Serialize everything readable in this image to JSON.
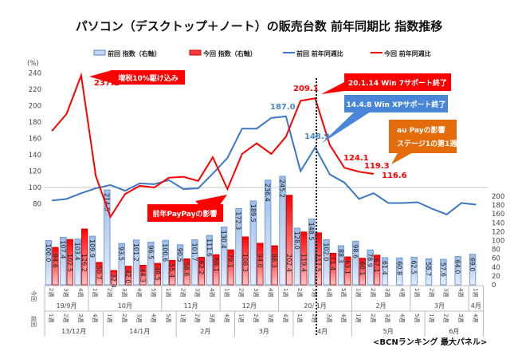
{
  "chart_data": {
    "type": "bar",
    "title": "パソコン（デスクトップ＋ノート）の販売台数 前年同期比 指数推移",
    "left_axis": {
      "label": "(%)",
      "ylim": [
        70,
        245
      ],
      "ticks": [
        80,
        100,
        120,
        140,
        160,
        180,
        200,
        220,
        240
      ]
    },
    "right_axis": {
      "ylim": [
        0,
        200
      ],
      "ticks": [
        0,
        20,
        40,
        60,
        80,
        100,
        120,
        140,
        160,
        180,
        200
      ]
    },
    "reference_line": 100,
    "legend": [
      {
        "name": "前回 指数（右軸）",
        "kind": "bar",
        "color": "#4f81bd"
      },
      {
        "name": "今回 指数（右軸）",
        "kind": "bar",
        "color": "#ff0000"
      },
      {
        "name": "前回 前年同週比",
        "kind": "line",
        "color": "#3c78c4"
      },
      {
        "name": "今回 前年同週比",
        "kind": "line",
        "color": "#ff0000"
      }
    ],
    "legend_placement": "top",
    "series": [
      {
        "name": "前回 指数（右軸）",
        "axis": "right",
        "type": "bar",
        "values": [
          100.0,
          107.4,
          103.4,
          109.9,
          214.5,
          93.5,
          101.2,
          96.5,
          100.6,
          90.5,
          101.7,
          111.6,
          130.4,
          172.3,
          189.5,
          236.4,
          245.2,
          128.0,
          148.5,
          102.0,
          88.3,
          98.6,
          78.9,
          61.4,
          60.8,
          62.5,
          58.7,
          57.6,
          64.0,
          69.0
        ]
      },
      {
        "name": "今回 指数（右軸）",
        "axis": "right",
        "type": "bar",
        "values": [
          84.6,
          102.5,
          126.2,
          50.7,
          32.4,
          42.0,
          44.3,
          48.5,
          55.4,
          58.6,
          62.2,
          68.1,
          79.1,
          108.3,
          94.0,
          88.3,
          202.4,
          119.4,
          117.5,
          71.4,
          63.1,
          60.1,
          67.1
        ]
      },
      {
        "name": "前回 前年同週比",
        "axis": "left",
        "type": "line",
        "values": [
          84,
          86,
          93,
          99,
          103,
          96,
          105,
          104,
          109,
          98,
          99,
          117,
          136,
          172,
          172,
          185,
          187.0,
          120,
          148.9,
          116,
          106,
          86,
          93,
          81,
          81,
          82,
          74,
          67,
          81,
          79
        ]
      },
      {
        "name": "今回 前年同週比",
        "axis": "left",
        "type": "line",
        "values": [
          169,
          190,
          237.1,
          114,
          64,
          92,
          102,
          100,
          112,
          113,
          108,
          137,
          98,
          141,
          154,
          141,
          162,
          206,
          209.1,
          152,
          124.1,
          119.3,
          116.6
        ]
      }
    ],
    "x_current": {
      "row_label": "今回",
      "weeks": [
        "2週",
        "3週",
        "4週",
        "1週",
        "2週",
        "3週",
        "4週",
        "5週",
        "1週",
        "2週",
        "3週",
        "4週",
        "1週",
        "2週",
        "3週",
        "4週",
        "1週",
        "2週",
        "3週",
        "4週",
        "5週",
        "1週",
        "2週",
        "3週",
        "4週",
        "1週",
        "2週",
        "3週",
        "4週",
        "1週"
      ],
      "months": [
        {
          "label": "19/9月",
          "span": 3
        },
        {
          "label": "10月",
          "span": 5
        },
        {
          "label": "11月",
          "span": 4
        },
        {
          "label": "12月",
          "span": 4
        },
        {
          "label": "20/ 1月",
          "span": 5
        },
        {
          "label": "2月",
          "span": 4
        },
        {
          "label": "3月",
          "span": 4
        },
        {
          "label": "4月",
          "span": 1
        }
      ]
    },
    "x_previous": {
      "row_label": "前回",
      "weeks": [
        "1週",
        "2週",
        "3週",
        "4週",
        "1週",
        "2週",
        "3週",
        "4週",
        "5週",
        "1週",
        "2週",
        "3週",
        "4週",
        "1週",
        "2週",
        "3週",
        "4週",
        "1週",
        "2週",
        "3週",
        "4週",
        "1週",
        "2週",
        "3週",
        "4週",
        "5週",
        "1週",
        "2週",
        "3週",
        "4週"
      ],
      "months": [
        {
          "label": "13/12月",
          "span": 4
        },
        {
          "label": "14/1月",
          "span": 5
        },
        {
          "label": "2月",
          "span": 4
        },
        {
          "label": "3月",
          "span": 4
        },
        {
          "label": "4月",
          "span": 4
        },
        {
          "label": "5月",
          "span": 5
        },
        {
          "label": "6月",
          "span": 4
        }
      ]
    },
    "annotations": {
      "peak_red": "237.1",
      "peak_red2": "209.1",
      "peak_blue": "187.0",
      "blue_marker": "148.9",
      "r1": "124.1",
      "r2": "119.3",
      "r3": "116.6"
    },
    "callouts": [
      {
        "text": "増税10%駆け込み",
        "color": "#ff0000"
      },
      {
        "text": "前年PayPayの影響",
        "color": "#ff0000"
      },
      {
        "text": "20.1.14  Win 7サポート終了",
        "color": "#ff0000"
      },
      {
        "text": "14.4.8  Win XPサポート終了",
        "color": "#4a86d8"
      },
      {
        "text": "au Payの影響",
        "color": "#e46c0a"
      },
      {
        "text": "ステージ1の第1週",
        "color": "#e46c0a"
      }
    ],
    "source": "<BCNランキング  最大パネル>"
  }
}
